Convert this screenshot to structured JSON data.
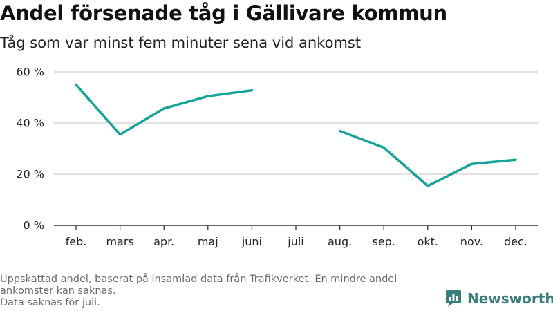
{
  "title": "Andel försenade tåg i Gällivare kommun",
  "subtitle": "Tåg som var minst fem minuter sena vid ankomst",
  "footer": {
    "note_line1": "Uppskattad andel, baserat på insamlad data från Trafikverket. En mindre andel",
    "note_line2": "ankomster kan saknas.",
    "note_line3": "Data saknas för juli."
  },
  "brand": {
    "name": "Newsworthy",
    "icon": "bar-chart-logo-icon"
  },
  "colors": {
    "line": "#16a39a",
    "grid": "#d9d9d9",
    "axis": "#333333",
    "brand": "#3a7d7d"
  },
  "chart_data": {
    "type": "line",
    "title": "Andel försenade tåg i Gällivare kommun",
    "subtitle": "Tåg som var minst fem minuter sena vid ankomst",
    "categories": [
      "feb.",
      "mars",
      "apr.",
      "maj",
      "juni",
      "juli",
      "aug.",
      "sep.",
      "okt.",
      "nov.",
      "dec."
    ],
    "series": [
      {
        "values": [
          55,
          35.5,
          45.7,
          50.5,
          52.8,
          null,
          36.9,
          30.4,
          15.4,
          24,
          25.6
        ]
      }
    ],
    "ylim": [
      0,
      60
    ],
    "yticks": [
      0,
      20,
      40,
      60
    ],
    "ytick_labels": [
      "0 %",
      "20 %",
      "40 %",
      "60 %"
    ],
    "grid": true,
    "xlabel": "",
    "ylabel": ""
  }
}
